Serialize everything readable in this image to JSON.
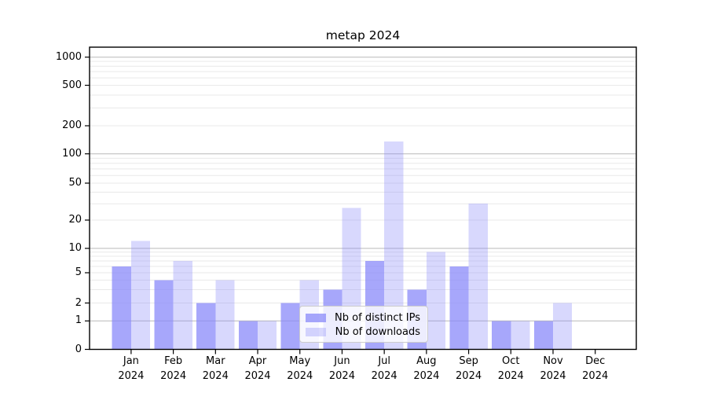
{
  "chart_data": {
    "type": "bar",
    "title": "metap 2024",
    "categories": [
      "Jan 2024",
      "Feb 2024",
      "Mar 2024",
      "Apr 2024",
      "May 2024",
      "Jun 2024",
      "Jul 2024",
      "Aug 2024",
      "Sep 2024",
      "Oct 2024",
      "Nov 2024",
      "Dec 2024"
    ],
    "series": [
      {
        "name": "Nb of distinct IPs",
        "color": "#8989faBF",
        "values": [
          6,
          4,
          2,
          1,
          2,
          3,
          7,
          3,
          6,
          1,
          1,
          0
        ]
      },
      {
        "name": "Nb of downloads",
        "color": "#8989fa54",
        "values": [
          12,
          7,
          4,
          1,
          4,
          27,
          135,
          9,
          30,
          1,
          2,
          0
        ]
      }
    ],
    "yticks": [
      0,
      1,
      2,
      5,
      10,
      20,
      50,
      100,
      200,
      500,
      1000
    ],
    "yscale": "symlog",
    "ylim": [
      0,
      1400
    ],
    "xlabel": "",
    "ylabel": "",
    "grid": "horizontal major and minor gridlines",
    "legend_position": "inside lower center",
    "colors": {
      "axis": "#000000",
      "grid_major": "#b9b9b9",
      "grid_minor": "#e9e9e9",
      "text": "#000000"
    }
  }
}
